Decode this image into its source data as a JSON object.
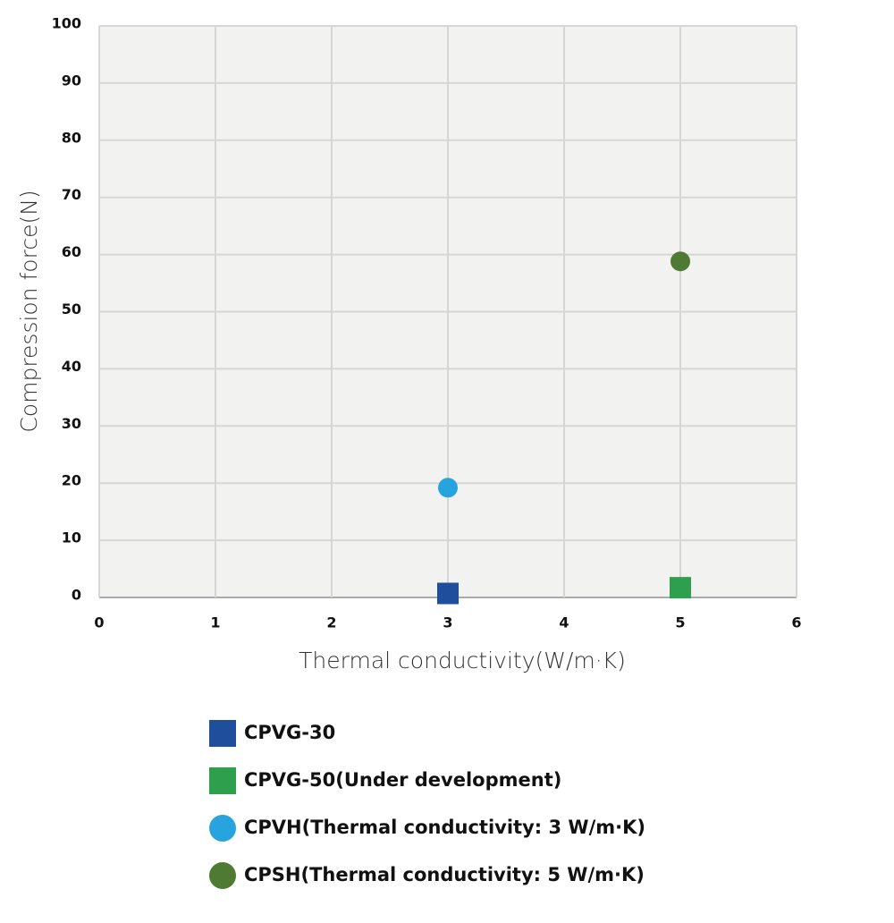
{
  "chart_data": {
    "type": "scatter",
    "xlabel": "Thermal conductivity(W/m·K)",
    "ylabel": "Compression force(N)",
    "xlim": [
      0,
      6
    ],
    "xticks": [
      0,
      1,
      2,
      3,
      4,
      5,
      6
    ],
    "ylim": [
      0,
      100
    ],
    "yticks": [
      0,
      10,
      20,
      30,
      40,
      50,
      60,
      70,
      80,
      90,
      100
    ],
    "grid": true,
    "legend": "bottom",
    "series": [
      {
        "name": "CPVG-30",
        "color": "#1f4e9c",
        "marker": "square",
        "x": [
          3
        ],
        "values": [
          0.7
        ]
      },
      {
        "name": "CPVG-50(Under development)",
        "color": "#2ea04d",
        "marker": "square",
        "x": [
          5
        ],
        "values": [
          1.7
        ]
      },
      {
        "name": "CPVH(Thermal conductivity: 3 W/m·K)",
        "color": "#27a4de",
        "marker": "circle",
        "x": [
          3
        ],
        "values": [
          19.2
        ]
      },
      {
        "name": "CPSH(Thermal conductivity: 5 W/m·K)",
        "color": "#4e7a34",
        "marker": "circle",
        "x": [
          5
        ],
        "values": [
          58.8
        ]
      }
    ]
  }
}
